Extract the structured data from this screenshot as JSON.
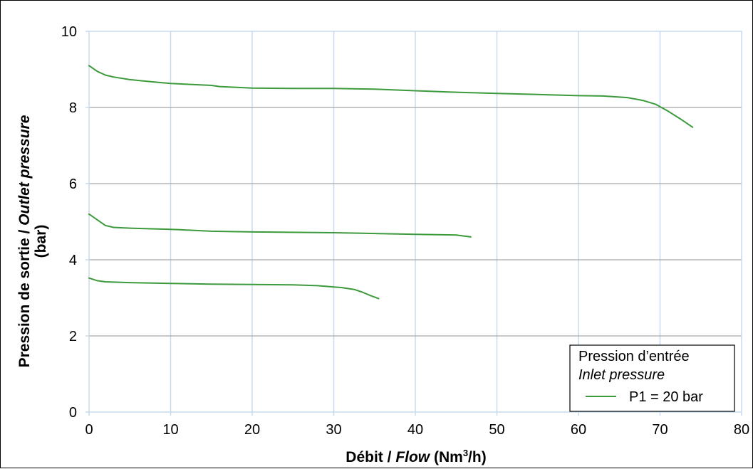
{
  "chart_data": {
    "type": "line",
    "xlabel": {
      "part1": "Débit / ",
      "part2": "Flow",
      "part3": " (Nm",
      "sup": "3",
      "part4": "/h)"
    },
    "ylabel": {
      "line1_part1": "Pression de sortie / ",
      "line1_part2": "Outlet pressure",
      "line2": "(bar)"
    },
    "xlim": [
      0,
      80
    ],
    "ylim": [
      0,
      10
    ],
    "x_ticks": [
      0,
      10,
      20,
      30,
      40,
      50,
      60,
      70,
      80
    ],
    "y_ticks": [
      0,
      2,
      4,
      6,
      8,
      10
    ],
    "grid": true,
    "colors": {
      "series": "#3c9a3c",
      "vertical_grid": "#c6dbef",
      "horizontal_grid": "#a6a6a6"
    },
    "legend": {
      "placement": "bottom-right",
      "title_line1": "Pression d’entrée",
      "title_line2": "Inlet pressure",
      "entry": "P1 = 20 bar"
    },
    "series": [
      {
        "name": "P1 = 20 bar",
        "points": [
          [
            0,
            9.1
          ],
          [
            1,
            8.95
          ],
          [
            2,
            8.85
          ],
          [
            3,
            8.8
          ],
          [
            5,
            8.73
          ],
          [
            8,
            8.67
          ],
          [
            10,
            8.63
          ],
          [
            15,
            8.58
          ],
          [
            16,
            8.55
          ],
          [
            20,
            8.51
          ],
          [
            25,
            8.5
          ],
          [
            30,
            8.5
          ],
          [
            35,
            8.48
          ],
          [
            40,
            8.44
          ],
          [
            45,
            8.4
          ],
          [
            50,
            8.37
          ],
          [
            55,
            8.34
          ],
          [
            60,
            8.31
          ],
          [
            63,
            8.3
          ],
          [
            66,
            8.26
          ],
          [
            68,
            8.18
          ],
          [
            69.5,
            8.08
          ],
          [
            71,
            7.9
          ],
          [
            72.5,
            7.7
          ],
          [
            74,
            7.48
          ]
        ]
      },
      {
        "name": "",
        "points": [
          [
            0,
            5.2
          ],
          [
            1,
            5.05
          ],
          [
            2,
            4.9
          ],
          [
            3,
            4.85
          ],
          [
            5,
            4.83
          ],
          [
            10,
            4.8
          ],
          [
            15,
            4.75
          ],
          [
            20,
            4.73
          ],
          [
            30,
            4.71
          ],
          [
            40,
            4.67
          ],
          [
            45,
            4.65
          ],
          [
            46.8,
            4.6
          ]
        ]
      },
      {
        "name": "",
        "points": [
          [
            0,
            3.52
          ],
          [
            1,
            3.45
          ],
          [
            2,
            3.42
          ],
          [
            5,
            3.4
          ],
          [
            10,
            3.38
          ],
          [
            15,
            3.36
          ],
          [
            20,
            3.35
          ],
          [
            25,
            3.34
          ],
          [
            28,
            3.32
          ],
          [
            31,
            3.27
          ],
          [
            32.5,
            3.22
          ],
          [
            33.5,
            3.15
          ],
          [
            34.5,
            3.06
          ],
          [
            35.5,
            2.98
          ]
        ]
      }
    ]
  }
}
